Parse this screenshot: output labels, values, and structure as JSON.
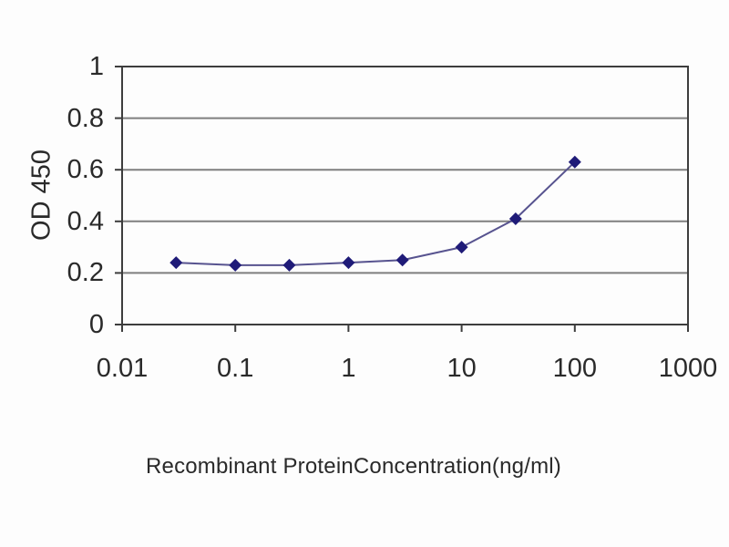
{
  "chart_data": {
    "type": "line",
    "title": "",
    "xlabel": "Recombinant ProteinConcentration(ng/ml)",
    "ylabel": "OD 450",
    "x_scale": "log",
    "xlim": [
      0.01,
      1000
    ],
    "ylim": [
      0,
      1
    ],
    "x_ticks": [
      0.01,
      0.1,
      1,
      10,
      100,
      1000
    ],
    "x_tick_labels": [
      "0.01",
      "0.1",
      "1",
      "10",
      "100",
      "1000"
    ],
    "y_ticks": [
      0,
      0.2,
      0.4,
      0.6,
      0.8,
      1
    ],
    "y_tick_labels": [
      "0",
      "0.2",
      "0.4",
      "0.6",
      "0.8",
      "1"
    ],
    "grid": "horizontal-gridlines",
    "legend": "none",
    "series": [
      {
        "name": "OD 450",
        "marker": "diamond",
        "x": [
          0.03,
          0.1,
          0.3,
          1,
          3,
          10,
          30,
          100
        ],
        "y": [
          0.24,
          0.23,
          0.23,
          0.24,
          0.25,
          0.3,
          0.41,
          0.63
        ]
      }
    ],
    "colors": {
      "marker": "#1f1b78",
      "line": "#57538f",
      "grid": "#7f7f7f",
      "axis": "#3d3d3d",
      "text": "#2a2a2a",
      "background": "#fdfdfd"
    }
  }
}
